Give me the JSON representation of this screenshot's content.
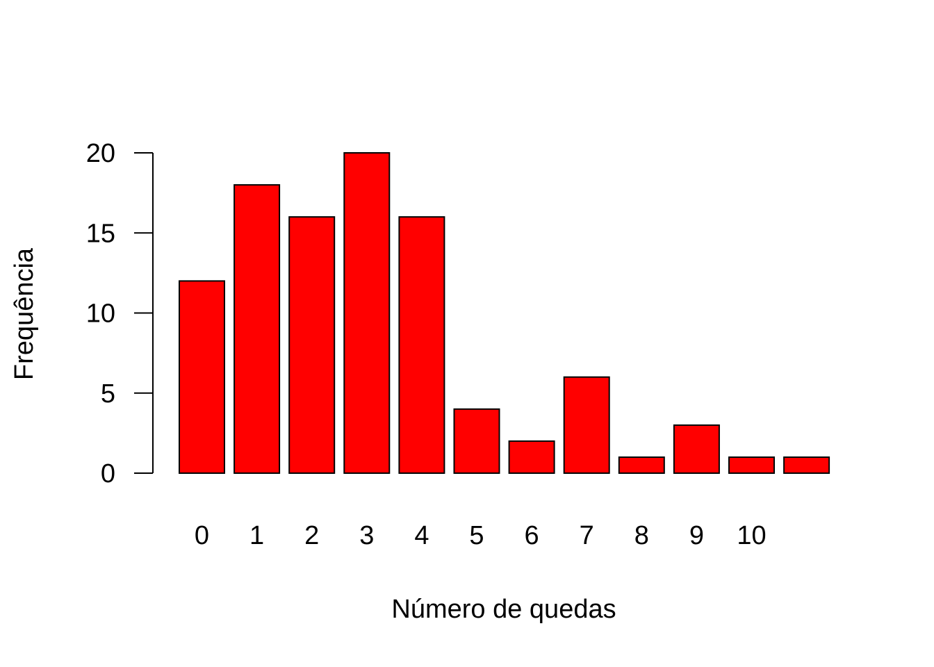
{
  "chart_data": {
    "type": "bar",
    "title": "",
    "xlabel": "Número de quedas",
    "ylabel": "Frequência",
    "categories": [
      "0",
      "1",
      "2",
      "3",
      "4",
      "5",
      "6",
      "7",
      "8",
      "9",
      "10",
      ""
    ],
    "values": [
      12,
      18,
      16,
      20,
      16,
      4,
      2,
      6,
      1,
      3,
      1,
      1
    ],
    "ylim": [
      0,
      20
    ],
    "yticks": [
      0,
      5,
      10,
      15,
      20
    ],
    "grid": false,
    "legend": "none",
    "bar_color": "#ff0000",
    "bar_edge_color": "#000000"
  }
}
